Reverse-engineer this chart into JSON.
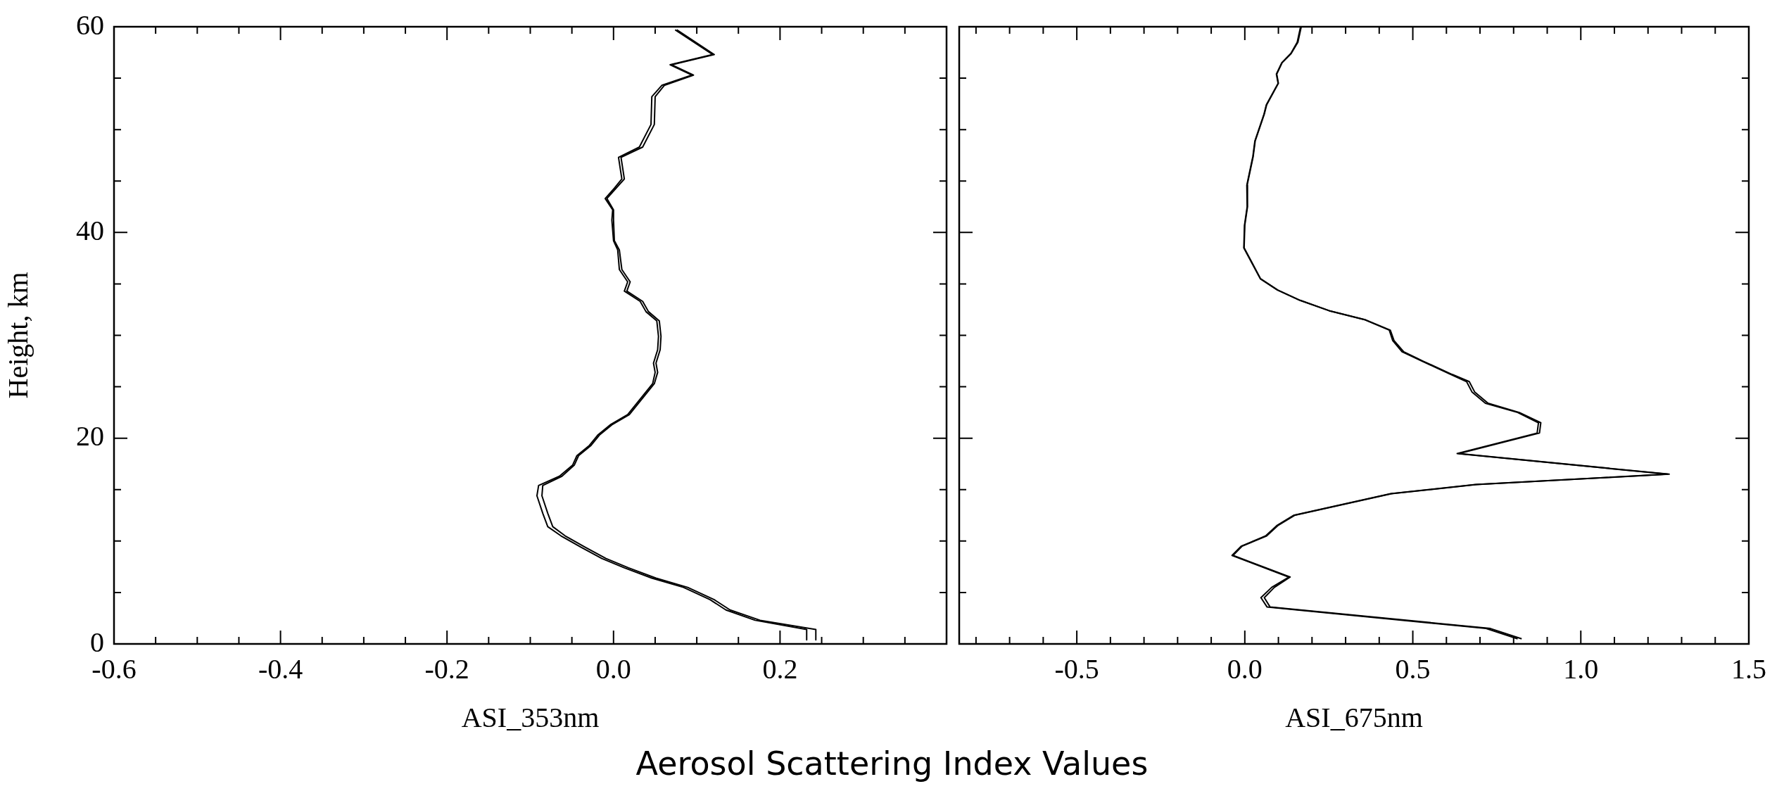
{
  "chart_data": [
    {
      "type": "line",
      "xlabel": "ASI_353nm",
      "ylabel": "Height, km",
      "annotations": [
        "Aerosol Scattering Index Values"
      ],
      "marker": "none",
      "grid": false,
      "legend": false,
      "xlim": [
        -0.6,
        0.4
      ],
      "ylim": [
        0,
        60
      ],
      "xticks": [
        {
          "value": -0.6,
          "label": "-0.6"
        },
        {
          "value": -0.55,
          "label": null
        },
        {
          "value": -0.5,
          "label": null
        },
        {
          "value": -0.45,
          "label": null
        },
        {
          "value": -0.4,
          "label": "-0.4"
        },
        {
          "value": -0.35,
          "label": null
        },
        {
          "value": -0.3,
          "label": null
        },
        {
          "value": -0.25,
          "label": null
        },
        {
          "value": -0.2,
          "label": "-0.2"
        },
        {
          "value": -0.15,
          "label": null
        },
        {
          "value": -0.1,
          "label": null
        },
        {
          "value": -0.05,
          "label": null
        },
        {
          "value": 0,
          "label": "0.0"
        },
        {
          "value": 0.05,
          "label": null
        },
        {
          "value": 0.1,
          "label": null
        },
        {
          "value": 0.15,
          "label": null
        },
        {
          "value": 0.2,
          "label": "0.2"
        },
        {
          "value": 0.25,
          "label": null
        },
        {
          "value": 0.3,
          "label": null
        },
        {
          "value": 0.35,
          "label": null
        },
        {
          "value": 0.4,
          "label": null
        }
      ],
      "yticks": [
        0,
        {
          "value": 5,
          "label": null
        },
        {
          "value": 10,
          "label": null
        },
        {
          "value": 15,
          "label": null
        },
        20,
        {
          "value": 25,
          "label": null
        },
        {
          "value": 30,
          "label": null
        },
        {
          "value": 35,
          "label": null
        },
        40,
        {
          "value": 45,
          "label": null
        },
        {
          "value": 50,
          "label": null
        },
        {
          "value": 55,
          "label": null
        },
        60
      ],
      "series": [
        {
          "color": "#000000",
          "x": [
            0.074,
            0.119,
            0.068,
            0.094,
            0.058,
            0.046,
            0.045,
            0.031,
            0.006,
            0.01,
            0.001,
            -0.01,
            -0.001,
            -0.002,
            0.0,
            0.005,
            0.007,
            0.017,
            0.013,
            0.032,
            0.039,
            0.052,
            0.054,
            0.053,
            0.048,
            0.05,
            0.047,
            0.017,
            -0.004,
            -0.019,
            -0.029,
            -0.044,
            -0.049,
            -0.065,
            -0.09,
            -0.092,
            -0.085,
            -0.079,
            -0.063,
            -0.039,
            -0.014,
            0.013,
            0.046,
            0.084,
            0.116,
            0.135,
            0.17,
            0.232,
            0.232
          ],
          "values": [
            59.7,
            57.3,
            56.3,
            55.3,
            54.3,
            53.2,
            50.5,
            48.3,
            47.3,
            45.2,
            44.3,
            43.3,
            42.2,
            41.2,
            39.2,
            38.3,
            36.4,
            35.2,
            34.3,
            33.3,
            32.3,
            31.4,
            29.9,
            28.6,
            27.3,
            26.4,
            25.3,
            22.3,
            21.3,
            20.3,
            19.3,
            18.3,
            17.4,
            16.3,
            15.4,
            14.4,
            12.7,
            11.4,
            10.5,
            9.4,
            8.3,
            7.4,
            6.4,
            5.5,
            4.3,
            3.3,
            2.3,
            1.4,
            0.4
          ]
        },
        {
          "color": "#000000",
          "x": [
            0.076,
            0.121,
            0.07,
            0.096,
            0.061,
            0.05,
            0.049,
            0.035,
            0.009,
            0.013,
            0.003,
            -0.008,
            0.0,
            0.0,
            0.001,
            0.007,
            0.01,
            0.02,
            0.016,
            0.035,
            0.042,
            0.055,
            0.057,
            0.056,
            0.051,
            0.053,
            0.049,
            0.019,
            -0.002,
            -0.017,
            -0.027,
            -0.042,
            -0.047,
            -0.062,
            -0.085,
            -0.086,
            -0.079,
            -0.073,
            -0.058,
            -0.034,
            -0.009,
            0.018,
            0.051,
            0.089,
            0.121,
            0.14,
            0.176,
            0.243,
            0.243
          ],
          "values": [
            59.7,
            57.3,
            56.3,
            55.3,
            54.3,
            53.2,
            50.5,
            48.3,
            47.3,
            45.2,
            44.3,
            43.3,
            42.2,
            41.2,
            39.2,
            38.3,
            36.4,
            35.2,
            34.3,
            33.3,
            32.3,
            31.4,
            29.9,
            28.6,
            27.3,
            26.4,
            25.3,
            22.3,
            21.3,
            20.3,
            19.3,
            18.3,
            17.4,
            16.3,
            15.4,
            14.4,
            12.7,
            11.4,
            10.5,
            9.4,
            8.3,
            7.4,
            6.4,
            5.5,
            4.3,
            3.3,
            2.3,
            1.4,
            0.4
          ]
        }
      ]
    },
    {
      "type": "line",
      "xlabel": "ASI_675nm",
      "marker": "none",
      "grid": false,
      "legend": false,
      "tick_labels": "x",
      "xlim": [
        -0.85,
        1.5
      ],
      "ylim": [
        0,
        60
      ],
      "xticks": [
        {
          "value": -0.8,
          "label": null
        },
        {
          "value": -0.7,
          "label": null
        },
        {
          "value": -0.6,
          "label": null
        },
        {
          "value": -0.5,
          "label": "-0.5"
        },
        {
          "value": -0.4,
          "label": null
        },
        {
          "value": -0.3,
          "label": null
        },
        {
          "value": -0.2,
          "label": null
        },
        {
          "value": -0.1,
          "label": null
        },
        {
          "value": 0,
          "label": "0.0"
        },
        {
          "value": 0.1,
          "label": null
        },
        {
          "value": 0.2,
          "label": null
        },
        {
          "value": 0.3,
          "label": null
        },
        {
          "value": 0.4,
          "label": null
        },
        {
          "value": 0.5,
          "label": "0.5"
        },
        {
          "value": 0.6,
          "label": null
        },
        {
          "value": 0.7,
          "label": null
        },
        {
          "value": 0.8,
          "label": null
        },
        {
          "value": 0.9,
          "label": null
        },
        {
          "value": 1,
          "label": "1.0"
        },
        {
          "value": 1.1,
          "label": null
        },
        {
          "value": 1.2,
          "label": null
        },
        {
          "value": 1.3,
          "label": null
        },
        {
          "value": 1.4,
          "label": null
        },
        {
          "value": 1.5,
          "label": "1.5"
        }
      ],
      "yticks": [
        {
          "value": 0,
          "label": null
        },
        {
          "value": 5,
          "label": null
        },
        {
          "value": 10,
          "label": null
        },
        {
          "value": 15,
          "label": null
        },
        {
          "value": 20,
          "label": null
        },
        {
          "value": 25,
          "label": null
        },
        {
          "value": 30,
          "label": null
        },
        {
          "value": 35,
          "label": null
        },
        {
          "value": 40,
          "label": null
        },
        {
          "value": 45,
          "label": null
        },
        {
          "value": 50,
          "label": null
        },
        {
          "value": 55,
          "label": null
        },
        {
          "value": 60,
          "label": null
        }
      ],
      "series": [
        {
          "color": "#000000",
          "x": [
            0.168,
            0.158,
            0.138,
            0.111,
            0.095,
            0.1,
            0.065,
            0.058,
            0.031,
            0.025,
            0.007,
            0.008,
            0.0,
            -0.002,
            0.047,
            0.098,
            0.165,
            0.251,
            0.36,
            0.433,
            0.444,
            0.473,
            0.53,
            0.617,
            0.668,
            0.684,
            0.724,
            0.817,
            0.881,
            0.877,
            0.637,
            1.263,
            0.69,
            0.437,
            0.148,
            0.098,
            0.065,
            -0.008,
            -0.035,
            0.135,
            0.088,
            0.058,
            0.075,
            0.731,
            0.824
          ],
          "values": [
            60,
            58.5,
            57.4,
            56.5,
            55.4,
            54.5,
            52.4,
            51.5,
            48.9,
            47.4,
            44.6,
            42.5,
            40.7,
            38.5,
            35.5,
            34.4,
            33.4,
            32.4,
            31.5,
            30.5,
            29.5,
            28.4,
            27.5,
            26.2,
            25.5,
            24.5,
            23.4,
            22.5,
            21.5,
            20.5,
            18.5,
            16.5,
            15.5,
            14.6,
            12.5,
            11.5,
            10.5,
            9.5,
            8.6,
            6.5,
            5.5,
            4.5,
            3.6,
            1.5,
            0.5
          ]
        },
        {
          "color": "#000000",
          "x": [
            0.166,
            0.156,
            0.137,
            0.11,
            0.094,
            0.099,
            0.064,
            0.057,
            0.03,
            0.024,
            0.006,
            0.007,
            -0.001,
            -0.003,
            0.046,
            0.097,
            0.164,
            0.25,
            0.358,
            0.43,
            0.44,
            0.468,
            0.527,
            0.613,
            0.66,
            0.676,
            0.716,
            0.812,
            0.874,
            0.87,
            0.632,
            1.258,
            0.686,
            0.434,
            0.145,
            0.095,
            0.062,
            -0.011,
            -0.038,
            0.131,
            0.08,
            0.048,
            0.066,
            0.718,
            0.812
          ],
          "values": [
            60,
            58.5,
            57.4,
            56.5,
            55.4,
            54.5,
            52.4,
            51.5,
            48.9,
            47.4,
            44.6,
            42.5,
            40.7,
            38.5,
            35.5,
            34.4,
            33.4,
            32.4,
            31.5,
            30.5,
            29.5,
            28.4,
            27.5,
            26.2,
            25.5,
            24.5,
            23.4,
            22.5,
            21.5,
            20.5,
            18.5,
            16.5,
            15.5,
            14.6,
            12.5,
            11.5,
            10.5,
            9.5,
            8.6,
            6.5,
            5.5,
            4.5,
            3.6,
            1.5,
            0.5
          ]
        }
      ]
    }
  ]
}
